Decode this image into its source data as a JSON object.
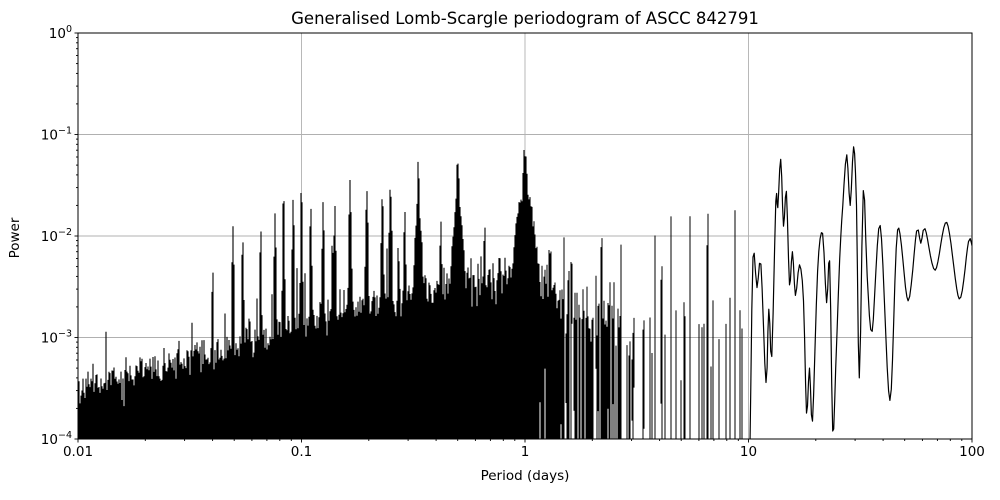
{
  "chart_data": {
    "type": "line",
    "title": "Generalised Lomb-Scargle periodogram of ASCC 842791",
    "xlabel": "Period (days)",
    "ylabel": "Power",
    "xscale": "log",
    "yscale": "log",
    "xlim": [
      0.01,
      100
    ],
    "ylim": [
      0.0001,
      1
    ],
    "grid": true,
    "legend": null,
    "colors": {
      "line": "#000000",
      "grid": "#b0b0b0",
      "frame": "#000000",
      "background": "#ffffff"
    },
    "x_ticks": [
      {
        "value": 0.01,
        "label": "0.01"
      },
      {
        "value": 0.1,
        "label": "0.1"
      },
      {
        "value": 1,
        "label": "1"
      },
      {
        "value": 10,
        "label": "10"
      },
      {
        "value": 100,
        "label": "100"
      }
    ],
    "y_ticks": [
      {
        "value": 1,
        "mantissa": "10",
        "exp": "0"
      },
      {
        "value": 0.1,
        "mantissa": "10",
        "exp": "−1"
      },
      {
        "value": 0.01,
        "mantissa": "10",
        "exp": "−2"
      },
      {
        "value": 0.001,
        "mantissa": "10",
        "exp": "−3"
      },
      {
        "value": 0.0001,
        "mantissa": "10",
        "exp": "−4"
      }
    ],
    "main_peaks": [
      {
        "period": 0.1,
        "power": 0.022
      },
      {
        "period": 0.125,
        "power": 0.0215
      },
      {
        "period": 0.165,
        "power": 0.033
      },
      {
        "period": 0.196,
        "power": 0.027
      },
      {
        "period": 0.25,
        "power": 0.029
      },
      {
        "period": 0.333,
        "power": 0.05
      },
      {
        "period": 0.5,
        "power": 0.054
      },
      {
        "period": 1.0,
        "power": 0.072
      },
      {
        "period": 6.6,
        "power": 0.019
      },
      {
        "period": 8.7,
        "power": 0.019
      },
      {
        "period": 13.9,
        "power": 0.057
      },
      {
        "period": 29.5,
        "power": 0.076
      },
      {
        "period": 32.6,
        "power": 0.028
      },
      {
        "period": 77,
        "power": 0.0136
      }
    ],
    "noise_floor": [
      [
        0.01,
        0.00033
      ],
      [
        0.016,
        0.00042
      ],
      [
        0.025,
        0.00052
      ],
      [
        0.04,
        0.0007
      ],
      [
        0.06,
        0.0009
      ],
      [
        0.09,
        0.0013
      ],
      [
        0.13,
        0.0017
      ],
      [
        0.2,
        0.0021
      ],
      [
        0.3,
        0.0026
      ],
      [
        0.5,
        0.0032
      ],
      [
        0.8,
        0.004
      ],
      [
        1.05,
        0.0045
      ],
      [
        1.4,
        0.0028
      ],
      [
        2,
        0.0019
      ],
      [
        3,
        0.0016
      ],
      [
        5,
        0.0016
      ],
      [
        7,
        0.0018
      ],
      [
        9.5,
        0.002
      ]
    ],
    "spike_clusters": [
      [
        0.04,
        0.0035,
        0.004
      ],
      [
        0.0494,
        0.013,
        0.0045
      ],
      [
        0.0546,
        0.01,
        0.0045
      ],
      [
        0.0656,
        0.01,
        0.0045
      ],
      [
        0.0762,
        0.016,
        0.005
      ],
      [
        0.0831,
        0.021,
        0.005
      ],
      [
        0.0918,
        0.0215,
        0.005
      ],
      [
        0.1,
        0.0215,
        0.005
      ],
      [
        0.11,
        0.0165,
        0.005
      ],
      [
        0.125,
        0.0215,
        0.005
      ],
      [
        0.141,
        0.019,
        0.005
      ],
      [
        0.165,
        0.033,
        0.006
      ],
      [
        0.196,
        0.027,
        0.006
      ],
      [
        0.23,
        0.022,
        0.006
      ],
      [
        0.25,
        0.029,
        0.007
      ],
      [
        0.29,
        0.016,
        0.005
      ],
      [
        0.333,
        0.05,
        0.006
      ],
      [
        0.333,
        0.018,
        0.018
      ],
      [
        0.42,
        0.013,
        0.005
      ],
      [
        0.5,
        0.054,
        0.008
      ],
      [
        0.5,
        0.022,
        0.025
      ],
      [
        0.66,
        0.012,
        0.005
      ],
      [
        1.0,
        0.072,
        0.012
      ],
      [
        1.0,
        0.028,
        0.045
      ],
      [
        1.5,
        0.0095,
        0.005
      ],
      [
        2.2,
        0.009,
        0.005
      ],
      [
        2.7,
        0.008,
        0.005
      ],
      [
        3.8,
        0.009,
        0.005
      ],
      [
        4.5,
        0.0165,
        0.005
      ],
      [
        5.45,
        0.017,
        0.005
      ],
      [
        6.6,
        0.019,
        0.006
      ],
      [
        8.7,
        0.019,
        0.007
      ]
    ],
    "smooth_tail": [
      [
        10.16,
        9e-05
      ],
      [
        10.47,
        0.0062
      ],
      [
        10.91,
        0.0031
      ],
      [
        11.36,
        0.0053
      ],
      [
        11.97,
        0.00036
      ],
      [
        12.33,
        0.0019
      ],
      [
        12.71,
        0.00065
      ],
      [
        13.25,
        0.022
      ],
      [
        13.52,
        0.019
      ],
      [
        13.94,
        0.057
      ],
      [
        14.34,
        0.0125
      ],
      [
        14.78,
        0.0275
      ],
      [
        15.25,
        0.0033
      ],
      [
        15.72,
        0.007
      ],
      [
        16.22,
        0.0026
      ],
      [
        16.91,
        0.0052
      ],
      [
        17.63,
        0.0023
      ],
      [
        18.18,
        0.00018
      ],
      [
        18.75,
        0.0005
      ],
      [
        19.34,
        0.00015
      ],
      [
        20.37,
        0.0045
      ],
      [
        21.45,
        0.0106
      ],
      [
        22.36,
        0.0022
      ],
      [
        23.07,
        0.0057
      ],
      [
        23.82,
        0.00012
      ],
      [
        24.56,
        0.0005
      ],
      [
        25.6,
        0.006
      ],
      [
        26.41,
        0.02
      ],
      [
        27.52,
        0.063
      ],
      [
        28.51,
        0.02
      ],
      [
        29.52,
        0.0756
      ],
      [
        30.42,
        0.02
      ],
      [
        31.33,
        0.0004
      ],
      [
        32.63,
        0.028
      ],
      [
        33.97,
        0.004
      ],
      [
        35.75,
        0.00115
      ],
      [
        38.84,
        0.0127
      ],
      [
        42.92,
        0.00024
      ],
      [
        46.45,
        0.0115
      ],
      [
        51.77,
        0.0023
      ],
      [
        56.52,
        0.0112
      ],
      [
        59.02,
        0.0085
      ],
      [
        61.64,
        0.0118
      ],
      [
        68.42,
        0.0046
      ],
      [
        77.11,
        0.0136
      ],
      [
        87.67,
        0.0024
      ],
      [
        96.42,
        0.0088
      ],
      [
        100,
        0.008
      ]
    ],
    "generator": {
      "seed": 11,
      "cycles_coeff": 1.0845,
      "stray_prob": 0.02,
      "sigma_curve": [
        [
          0.01,
          0.18
        ],
        [
          0.3,
          0.2
        ],
        [
          0.5,
          0.25
        ],
        [
          1,
          0.32
        ],
        [
          1.8,
          0.45
        ],
        [
          3,
          0.62
        ],
        [
          10,
          0.62
        ]
      ]
    }
  }
}
